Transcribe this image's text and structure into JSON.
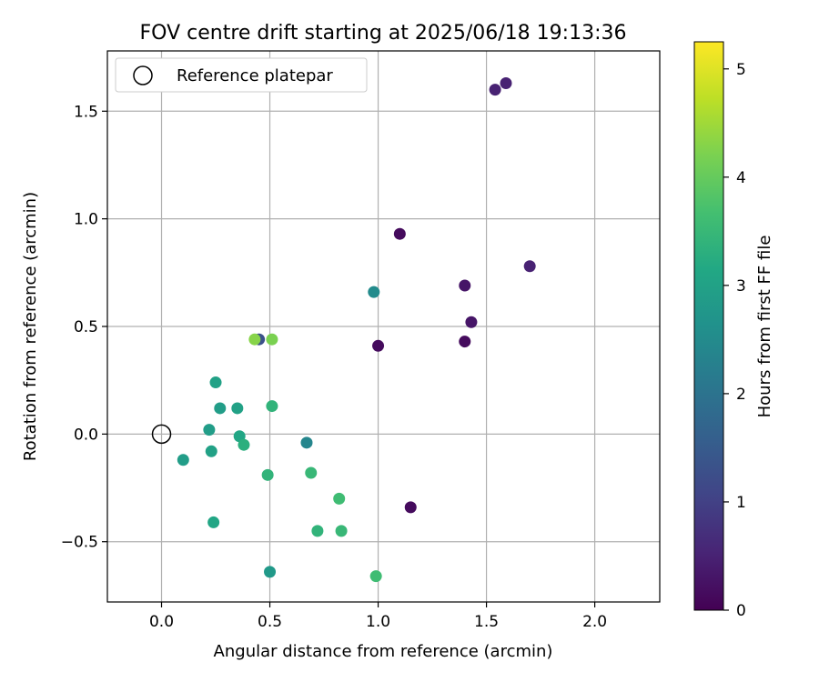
{
  "chart_data": {
    "type": "scatter",
    "title": "FOV centre drift starting at 2025/06/18 19:13:36",
    "xlabel": "Angular distance from reference (arcmin)",
    "ylabel": "Rotation from reference (arcmin)",
    "xlim": [
      -0.25,
      2.3
    ],
    "ylim": [
      -0.78,
      1.78
    ],
    "xticks": [
      0.0,
      0.5,
      1.0,
      1.5,
      2.0
    ],
    "xtick_labels": [
      "0.0",
      "0.5",
      "1.0",
      "1.5",
      "2.0"
    ],
    "yticks": [
      -0.5,
      0.0,
      0.5,
      1.0,
      1.5
    ],
    "ytick_labels": [
      "−0.5",
      "0.0",
      "0.5",
      "1.0",
      "1.5"
    ],
    "grid": true,
    "legend": {
      "position": "top-left",
      "entries": [
        "Reference platepar"
      ]
    },
    "reference_point": {
      "x": 0.0,
      "y": 0.0
    },
    "colormap": "viridis",
    "colorbar": {
      "label": "Hours from first FF file",
      "range": [
        0,
        5.25
      ],
      "ticks": [
        0,
        1,
        2,
        3,
        4,
        5
      ],
      "tick_labels": [
        "0",
        "1",
        "2",
        "3",
        "4",
        "5"
      ]
    },
    "points": [
      {
        "x": 1.54,
        "y": 1.6,
        "c": 0.5
      },
      {
        "x": 1.59,
        "y": 1.63,
        "c": 0.5
      },
      {
        "x": 1.1,
        "y": 0.93,
        "c": 0.15
      },
      {
        "x": 1.7,
        "y": 0.78,
        "c": 0.5
      },
      {
        "x": 1.4,
        "y": 0.69,
        "c": 0.3
      },
      {
        "x": 1.43,
        "y": 0.52,
        "c": 0.3
      },
      {
        "x": 1.4,
        "y": 0.43,
        "c": 0.15
      },
      {
        "x": 1.0,
        "y": 0.41,
        "c": 0.15
      },
      {
        "x": 0.98,
        "y": 0.66,
        "c": 2.5
      },
      {
        "x": 1.15,
        "y": -0.34,
        "c": 0.15
      },
      {
        "x": 0.45,
        "y": 0.44,
        "c": 1.3
      },
      {
        "x": 0.43,
        "y": 0.44,
        "c": 4.3
      },
      {
        "x": 0.51,
        "y": 0.44,
        "c": 4.2
      },
      {
        "x": 0.25,
        "y": 0.24,
        "c": 3.0
      },
      {
        "x": 0.27,
        "y": 0.12,
        "c": 2.9
      },
      {
        "x": 0.35,
        "y": 0.12,
        "c": 3.0
      },
      {
        "x": 0.51,
        "y": 0.13,
        "c": 3.4
      },
      {
        "x": 0.22,
        "y": 0.02,
        "c": 2.9
      },
      {
        "x": 0.36,
        "y": -0.01,
        "c": 3.1
      },
      {
        "x": 0.38,
        "y": -0.05,
        "c": 3.3
      },
      {
        "x": 0.23,
        "y": -0.08,
        "c": 3.0
      },
      {
        "x": 0.1,
        "y": -0.12,
        "c": 2.9
      },
      {
        "x": 0.67,
        "y": -0.04,
        "c": 2.4
      },
      {
        "x": 0.49,
        "y": -0.19,
        "c": 3.4
      },
      {
        "x": 0.69,
        "y": -0.18,
        "c": 3.5
      },
      {
        "x": 0.82,
        "y": -0.3,
        "c": 3.6
      },
      {
        "x": 0.24,
        "y": -0.41,
        "c": 3.1
      },
      {
        "x": 0.72,
        "y": -0.45,
        "c": 3.4
      },
      {
        "x": 0.83,
        "y": -0.45,
        "c": 3.5
      },
      {
        "x": 0.5,
        "y": -0.64,
        "c": 2.8
      },
      {
        "x": 0.99,
        "y": -0.66,
        "c": 3.6
      }
    ]
  }
}
